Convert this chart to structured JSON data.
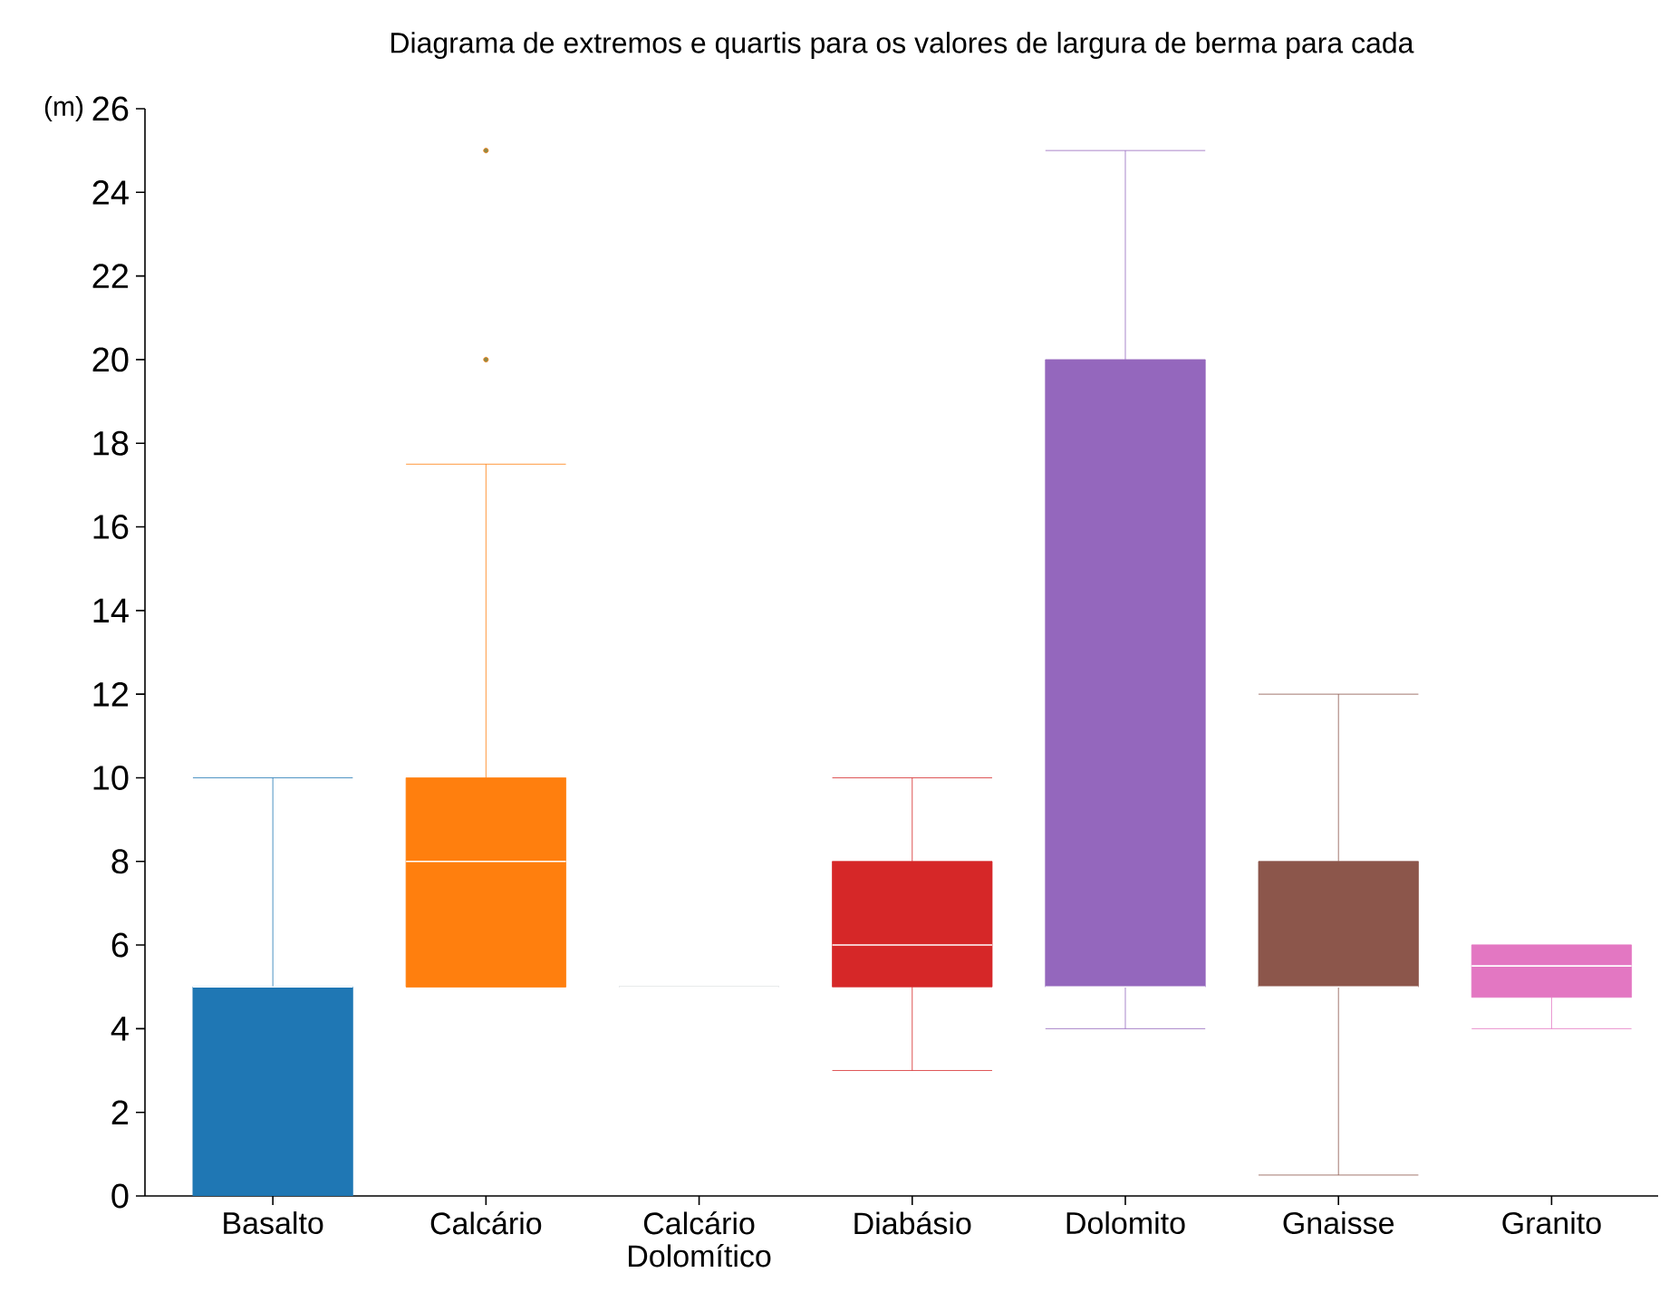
{
  "chart_data": {
    "type": "box",
    "title": "Diagrama de extremos e quartis para os valores de largura de berma para cada",
    "ylabel": "(m)",
    "categories": [
      "Basalto",
      "Calcário",
      "Calcário Dolomítico",
      "Diabásio",
      "Dolomito",
      "Gnaisse",
      "Granito"
    ],
    "colors": [
      "#1f77b4",
      "#ff7f0e",
      "#b8bcc4",
      "#d62728",
      "#9467bd",
      "#8c564b",
      "#e377c2"
    ],
    "boxes": [
      {
        "low": 0,
        "q1": 0,
        "median": 5,
        "q3": 5,
        "high": 10
      },
      {
        "low": 5,
        "q1": 5,
        "median": 8,
        "q3": 10,
        "high": 17.5,
        "outliers": [
          20,
          25
        ]
      },
      {
        "low": 5,
        "q1": 5,
        "median": 5,
        "q3": 5,
        "high": 5
      },
      {
        "low": 3,
        "q1": 5,
        "median": 6,
        "q3": 8,
        "high": 10
      },
      {
        "low": 4,
        "q1": 5,
        "median": 5,
        "q3": 20,
        "high": 25
      },
      {
        "low": 0.5,
        "q1": 5,
        "median": 5,
        "q3": 8,
        "high": 12
      },
      {
        "low": 4,
        "q1": 4.75,
        "median": 5.5,
        "q3": 6,
        "high": 6
      }
    ],
    "ylim": [
      0,
      26
    ],
    "yticks": [
      0,
      2,
      4,
      6,
      8,
      10,
      12,
      14,
      16,
      18,
      20,
      22,
      24,
      26
    ]
  }
}
